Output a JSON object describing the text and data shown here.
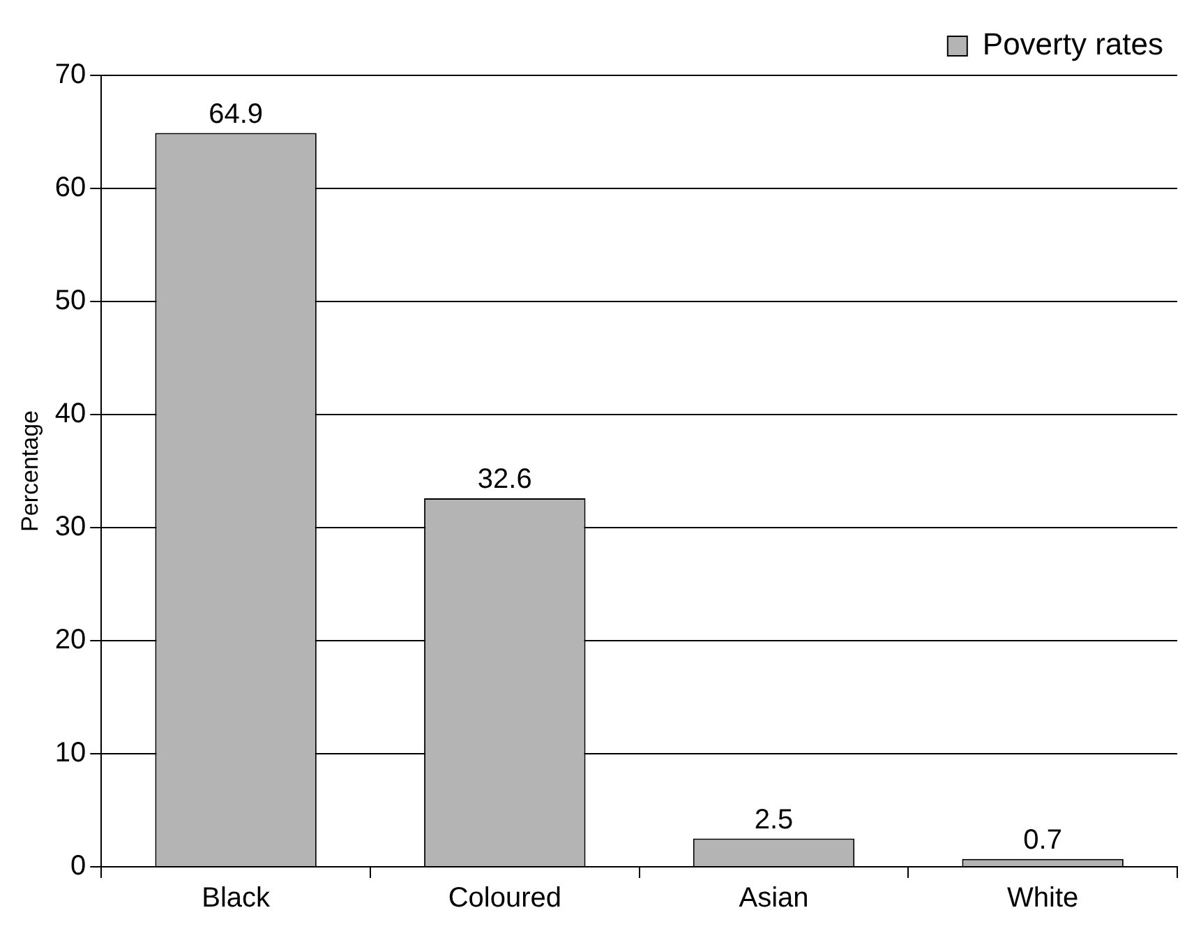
{
  "chart_data": {
    "type": "bar",
    "ylabel": "Percentage",
    "categories": [
      "Black",
      "Coloured",
      "Asian",
      "White"
    ],
    "series": [
      {
        "name": "Poverty rates",
        "color": "#b4b4b4",
        "values": [
          64.9,
          32.6,
          2.5,
          0.7
        ]
      }
    ],
    "ylim": [
      0,
      70
    ],
    "yticks": [
      0,
      10,
      20,
      30,
      40,
      50,
      60,
      70
    ],
    "grid": "y",
    "legend": "top right",
    "data_labels": true
  }
}
